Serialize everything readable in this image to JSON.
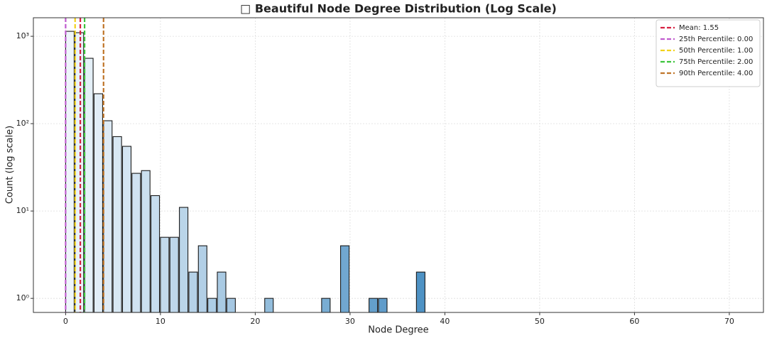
{
  "chart_data": {
    "type": "histogram",
    "title": "□ Beautiful Node Degree Distribution (Log Scale)",
    "x_label": "Node Degree",
    "y_label": "Count (log scale)",
    "bins": [
      0,
      1,
      2,
      3,
      4,
      5,
      6,
      7,
      8,
      9,
      10,
      11,
      12,
      13,
      14,
      15,
      16,
      17,
      18,
      19,
      20,
      21,
      22,
      23,
      24,
      25,
      26,
      27,
      28,
      29,
      30,
      31,
      32,
      33,
      34,
      35,
      36,
      37,
      38
    ],
    "values": [
      1140,
      1100,
      560,
      220,
      108,
      71,
      55,
      27,
      29,
      15,
      5,
      5,
      11,
      2,
      4,
      1,
      2,
      1,
      0,
      0,
      0,
      1,
      0,
      0,
      0,
      0,
      0,
      1,
      0,
      4,
      0,
      0,
      1,
      1,
      0,
      0,
      0,
      2
    ],
    "rwidth": 0.9,
    "colormap": [
      "#eef5fb",
      "#4a8fc2"
    ],
    "edge_color": "#1a1a1a",
    "xlim": [
      -3.4,
      73.6
    ],
    "xticks": [
      0,
      10,
      20,
      30,
      40,
      50,
      60,
      70
    ],
    "ylim": [
      0.69,
      1630
    ],
    "yticks": [
      {
        "value": 1,
        "label": "10⁰"
      },
      {
        "value": 10,
        "label": "10¹"
      },
      {
        "value": 100,
        "label": "10²"
      },
      {
        "value": 1000,
        "label": "10³"
      }
    ],
    "log_y": true,
    "grid": true,
    "legend": "upper right",
    "reference_lines": [
      {
        "name": "Mean: 1.55",
        "value": 1.55,
        "color": "#d62040"
      },
      {
        "name": "25th Percentile: 0.00",
        "value": 0.0,
        "color": "#c05ccf"
      },
      {
        "name": "50th Percentile: 1.00",
        "value": 1.0,
        "color": "#f2d21a"
      },
      {
        "name": "75th Percentile: 2.00",
        "value": 2.0,
        "color": "#3cc43c"
      },
      {
        "name": "90th Percentile: 4.00",
        "value": 4.0,
        "color": "#c0762a"
      }
    ]
  }
}
